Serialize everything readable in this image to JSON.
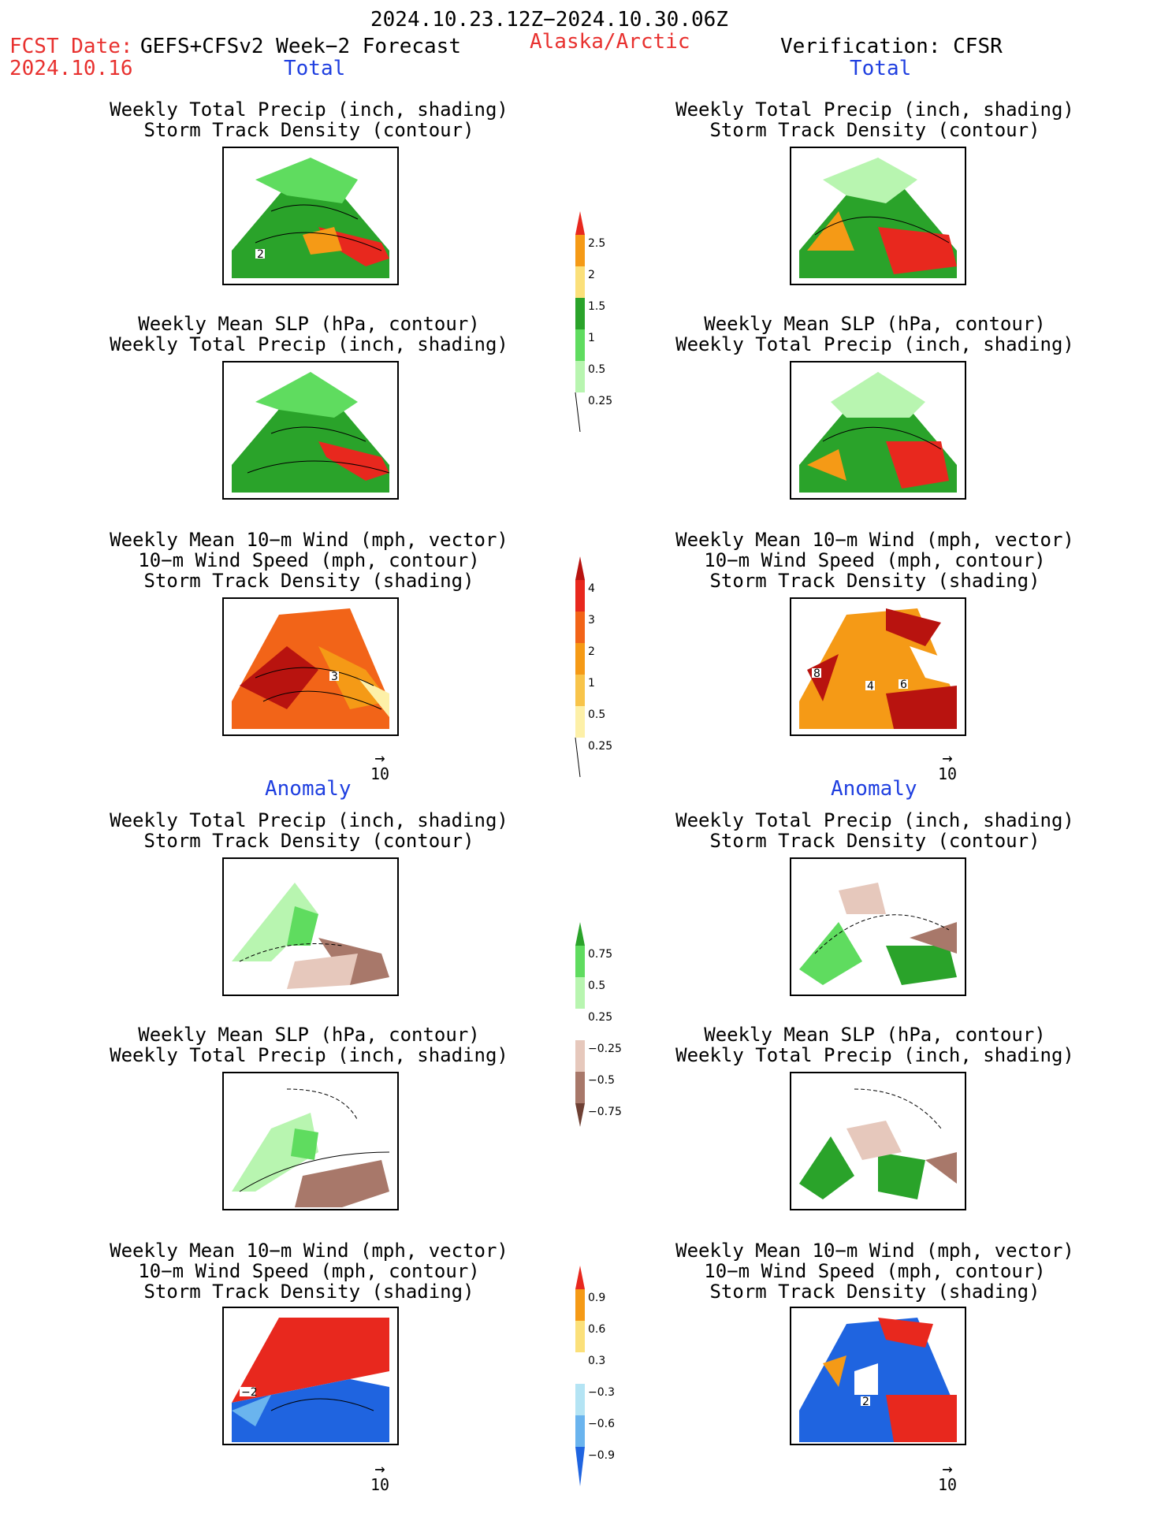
{
  "header": {
    "period": "2024.10.23.12Z−2024.10.30.06Z",
    "fcst_label": "FCST Date:",
    "fcst_model": "GEFS+CFSv2 Week−2 Forecast",
    "fcst_date": "2024.10.16",
    "region": "Alaska/Arctic",
    "verification": "Verification: CFSR"
  },
  "sections": {
    "total": "Total",
    "anomaly": "Anomaly"
  },
  "panel_titles": {
    "precip_track": [
      "Weekly Total Precip (inch, shading)",
      "Storm Track Density (contour)"
    ],
    "slp_precip": [
      "Weekly Mean SLP (hPa, contour)",
      "Weekly Total Precip (inch, shading)"
    ],
    "wind_track": [
      "Weekly Mean 10−m Wind (mph, vector)",
      "10−m Wind Speed (mph, contour)",
      "Storm Track Density (shading)"
    ]
  },
  "reference_vector": "10",
  "map_labels": {
    "total_left_precip": "2",
    "total_left_wind": "3",
    "total_right_wind_a": "8",
    "total_right_wind_b": "4",
    "total_right_wind_c": "6",
    "anom_left_wind": "−2",
    "anom_right_wind": "2"
  },
  "colorbars": {
    "precip_total": {
      "labels": [
        "2.5",
        "2",
        "1.5",
        "1",
        "0.5",
        "0.25"
      ],
      "colors": [
        "#e8281e",
        "#f59a16",
        "#fbe07a",
        "#2aa32a",
        "#5fdc5f",
        "#b8f5b0"
      ]
    },
    "track_total": {
      "labels": [
        "4",
        "3",
        "2",
        "1",
        "0.5",
        "0.25"
      ],
      "colors": [
        "#b8130f",
        "#e8281e",
        "#f26418",
        "#f59a16",
        "#f8c44a",
        "#fdf0a8"
      ]
    },
    "precip_anom": {
      "labels": [
        "0.75",
        "0.5",
        "0.25",
        "−0.25",
        "−0.5",
        "−0.75"
      ],
      "colors": [
        "#2aa32a",
        "#5fdc5f",
        "#b8f5b0",
        "#ffffff",
        "#e6c8bc",
        "#a8786a",
        "#6e4034"
      ]
    },
    "track_anom": {
      "labels": [
        "0.9",
        "0.6",
        "0.3",
        "−0.3",
        "−0.6",
        "−0.9"
      ],
      "colors": [
        "#e8281e",
        "#f59a16",
        "#fbe07a",
        "#ffffff",
        "#b4e4f4",
        "#6ab4ee",
        "#1f64e0"
      ]
    }
  }
}
